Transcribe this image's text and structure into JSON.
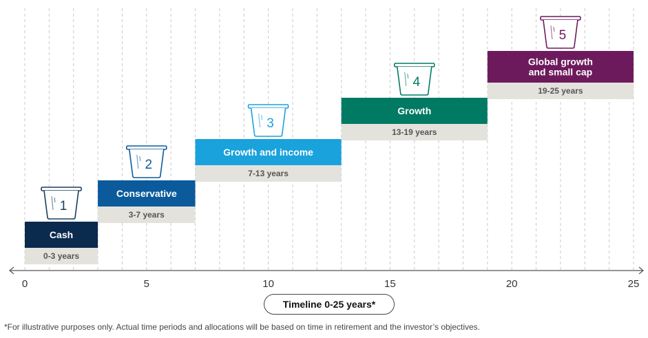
{
  "chart_data": {
    "type": "bar",
    "orientation": "horizontal-step",
    "x_axis": {
      "min": 0,
      "max": 25,
      "ticks": [
        0,
        5,
        10,
        15,
        20,
        25
      ],
      "minor_grid_step": 1,
      "grid": "dashed-vertical"
    },
    "xlabel": "Timeline 0-25 years*",
    "buckets": [
      {
        "number": "1",
        "name": "Cash",
        "period": "0-3 years",
        "start": 0,
        "end": 3,
        "color": "#0a2a4e",
        "icon_color": "#1a3d5e"
      },
      {
        "number": "2",
        "name": "Conservative",
        "period": "3-7 years",
        "start": 3,
        "end": 7,
        "color": "#0b5a9c",
        "icon_color": "#0b5a9c"
      },
      {
        "number": "3",
        "name": "Growth and income",
        "period": "7-13 years",
        "start": 7,
        "end": 13,
        "color": "#1aa2dc",
        "icon_color": "#1aa2dc"
      },
      {
        "number": "4",
        "name": "Growth",
        "period": "13-19 years",
        "start": 13,
        "end": 19,
        "color": "#007a63",
        "icon_color": "#007a63"
      },
      {
        "number": "5",
        "name": "Global growth\nand small cap",
        "period": "19-25 years",
        "start": 19,
        "end": 25,
        "color": "#6d1a5c",
        "icon_color": "#6d1a5c"
      }
    ],
    "period_band_color": "#e4e2dc"
  },
  "footnote": "*For illustrative purposes only. Actual time periods and allocations will be based on time in retirement and the investor’s objectives."
}
